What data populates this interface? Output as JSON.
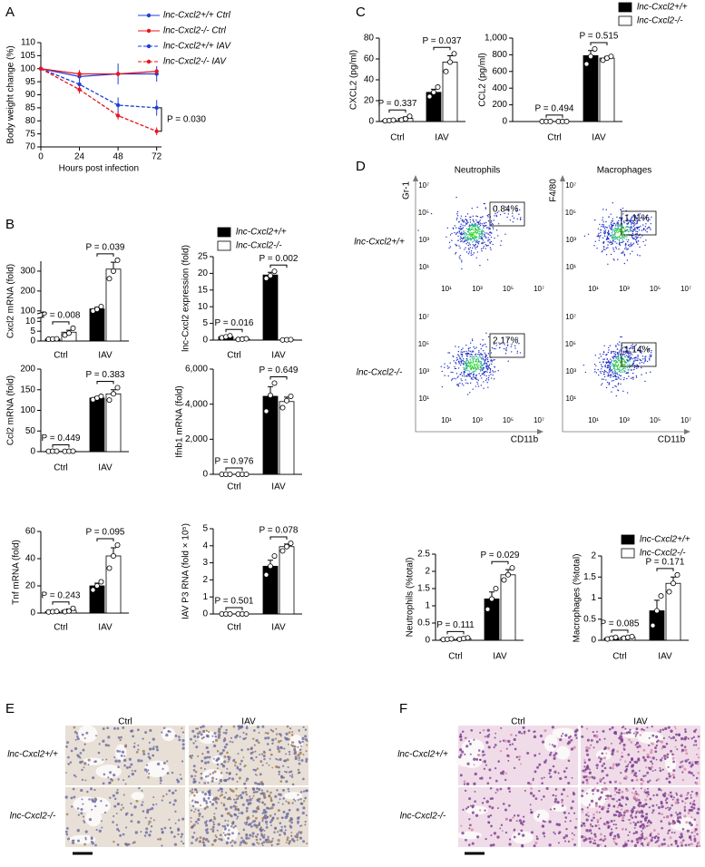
{
  "chart_data": [
    {
      "type": "line",
      "panel": "A",
      "ylabel": "Body weight change (%)",
      "xlabel": "Hours post infection",
      "x": [
        0,
        24,
        48,
        72
      ],
      "xlim": [
        0,
        75
      ],
      "xticks": [
        0,
        24,
        48,
        72
      ],
      "ylim": [
        70,
        110
      ],
      "yticks": [
        70,
        75,
        80,
        85,
        90,
        95,
        100,
        105,
        110
      ],
      "series": [
        {
          "name": "lnc-Cxcl2+/+ Ctrl",
          "color": "#1f3fd8",
          "dash": false,
          "values": [
            100,
            97,
            98,
            98
          ],
          "errors": [
            0,
            2,
            4,
            3
          ]
        },
        {
          "name": "lnc-Cxcl2-/- Ctrl",
          "color": "#e8141c",
          "dash": false,
          "values": [
            100,
            98,
            98,
            99
          ],
          "errors": [
            0,
            1.5,
            1,
            1
          ]
        },
        {
          "name": "lnc-Cxcl2+/+ IAV",
          "color": "#1f3fd8",
          "dash": true,
          "values": [
            100,
            94,
            86,
            85
          ],
          "errors": [
            0,
            2,
            3,
            3
          ]
        },
        {
          "name": "lnc-Cxcl2-/- IAV",
          "color": "#e8141c",
          "dash": true,
          "values": [
            100,
            92,
            82,
            76
          ],
          "errors": [
            0,
            1.5,
            1.5,
            1.5
          ]
        }
      ],
      "annotations": [
        "P = 0.030"
      ]
    },
    {
      "type": "bar",
      "panel": "B",
      "ylabel": "Cxcl2 mRNA (fold)",
      "categories": [
        "Ctrl",
        "IAV"
      ],
      "ylim": [
        0,
        350
      ],
      "ybreak": [
        12,
        90
      ],
      "yticks": [
        0,
        5,
        10,
        100,
        200,
        300
      ],
      "series": [
        {
          "color": "#000000",
          "values": [
            1,
            110
          ],
          "errors": [
            0.1,
            8
          ],
          "points": [
            [
              0.9,
              1,
              1.1
            ],
            [
              100,
              108,
              122
            ]
          ]
        },
        {
          "color": "#ffffff",
          "values": [
            4.5,
            310
          ],
          "errors": [
            1,
            35
          ],
          "points": [
            [
              3,
              4,
              6.5
            ],
            [
              262,
              300,
              355
            ]
          ]
        }
      ],
      "annotations": [
        "P = 0.008",
        "P = 0.039"
      ]
    },
    {
      "type": "bar",
      "ylabel": "lnc-Cxcl2 expression (fold)",
      "categories": [
        "Ctrl",
        "IAV"
      ],
      "ylim": [
        0,
        25
      ],
      "yticks": [
        0,
        5,
        10,
        15,
        20,
        25
      ],
      "legend": true,
      "series": [
        {
          "name": "lnc-Cxcl2+/+",
          "color": "#000000",
          "values": [
            1,
            19.5
          ],
          "errors": [
            0.2,
            0.8
          ],
          "points": [
            [
              0.7,
              1,
              1.3
            ],
            [
              18.5,
              19.3,
              20.6
            ]
          ]
        },
        {
          "name": "lnc-Cxcl2-/-",
          "color": "#ffffff",
          "values": [
            0.3,
            0.1
          ],
          "errors": [
            0.1,
            0.05
          ],
          "points": [
            [
              0.2,
              0.3,
              0.4
            ],
            [
              0.05,
              0.1,
              0.15
            ]
          ]
        }
      ],
      "annotations": [
        "P = 0.016",
        "P = 0.002"
      ]
    },
    {
      "type": "bar",
      "ylabel": "Ccl2 mRNA (fold)",
      "categories": [
        "Ctrl",
        "IAV"
      ],
      "ylim": [
        0,
        200
      ],
      "yticks": [
        0,
        50,
        100,
        150,
        200
      ],
      "series": [
        {
          "color": "#000000",
          "values": [
            1,
            130
          ],
          "errors": [
            0.2,
            3
          ],
          "points": [
            [
              0.8,
              1,
              1.2
            ],
            [
              126,
              130,
              134
            ]
          ]
        },
        {
          "color": "#ffffff",
          "values": [
            1,
            140
          ],
          "errors": [
            0.2,
            10
          ],
          "points": [
            [
              0.8,
              1,
              1.2
            ],
            [
              125,
              140,
              155
            ]
          ]
        }
      ],
      "annotations": [
        "P = 0.449",
        "P = 0.383"
      ]
    },
    {
      "type": "bar",
      "ylabel": "Ifnb1 mRNA (fold)",
      "categories": [
        "Ctrl",
        "IAV"
      ],
      "ylim": [
        0,
        6000
      ],
      "yticks": [
        0,
        {
          "value": 2000,
          "label": "2,000"
        },
        {
          "value": 4000,
          "label": "4,000"
        },
        {
          "value": 6000,
          "label": "6,000"
        }
      ],
      "series": [
        {
          "color": "#000000",
          "values": [
            1,
            4450
          ],
          "errors": [
            0.2,
            550
          ],
          "points": [
            [
              1,
              1,
              1
            ],
            [
              3600,
              4500,
              5200
            ]
          ]
        },
        {
          "color": "#ffffff",
          "values": [
            1,
            4150
          ],
          "errors": [
            0.2,
            250
          ],
          "points": [
            [
              1,
              1,
              1
            ],
            [
              3800,
              4200,
              4450
            ]
          ]
        }
      ],
      "annotations": [
        "P = 0.976",
        "P = 0.649"
      ]
    },
    {
      "type": "bar",
      "ylabel": "Tnf mRNA (fold)",
      "categories": [
        "Ctrl",
        "IAV"
      ],
      "ylim": [
        0,
        60
      ],
      "yticks": [
        0,
        20,
        40,
        60
      ],
      "series": [
        {
          "color": "#000000",
          "values": [
            1,
            20
          ],
          "errors": [
            0.2,
            2
          ],
          "points": [
            [
              0.8,
              1,
              1.2
            ],
            [
              17,
              20,
              23
            ]
          ]
        },
        {
          "color": "#ffffff",
          "values": [
            2,
            42
          ],
          "errors": [
            1,
            6
          ],
          "points": [
            [
              1,
              1.5,
              3.5
            ],
            [
              33,
              42,
              50
            ]
          ]
        }
      ],
      "annotations": [
        "P = 0.243",
        "P = 0.095"
      ]
    },
    {
      "type": "bar",
      "ylabel": "IAV P3 RNA (fold × 10⁵)",
      "categories": [
        "Ctrl",
        "IAV"
      ],
      "ylim": [
        0,
        5
      ],
      "yticks": [
        0,
        1,
        2,
        3,
        4,
        5
      ],
      "series": [
        {
          "color": "#000000",
          "values": [
            0,
            2.8
          ],
          "errors": [
            0,
            0.35
          ],
          "points": [
            [
              0,
              0,
              0
            ],
            [
              2.3,
              2.8,
              3.4
            ]
          ]
        },
        {
          "color": "#ffffff",
          "values": [
            0,
            3.95
          ],
          "errors": [
            0,
            0.15
          ],
          "points": [
            [
              0,
              0,
              0
            ],
            [
              3.7,
              3.95,
              4.15
            ]
          ]
        }
      ],
      "annotations": [
        "P = 0.501",
        "P = 0.078"
      ]
    },
    {
      "type": "bar",
      "panel": "C",
      "ylabel": "CXCL2 (pg/ml)",
      "categories": [
        "Ctrl",
        "IAV"
      ],
      "ylim": [
        0,
        80
      ],
      "yticks": [
        0,
        20,
        40,
        60,
        80
      ],
      "series": [
        {
          "color": "#000000",
          "values": [
            1,
            28
          ],
          "errors": [
            0.3,
            3
          ],
          "points": [
            [
              0.7,
              1,
              1.3
            ],
            [
              24,
              28,
              33
            ]
          ]
        },
        {
          "color": "#ffffff",
          "values": [
            3,
            57
          ],
          "errors": [
            1.5,
            6
          ],
          "points": [
            [
              1.5,
              2.5,
              5
            ],
            [
              48,
              57,
              65
            ]
          ]
        }
      ],
      "annotations": [
        "P = 0.337",
        "P = 0.037"
      ]
    },
    {
      "type": "bar",
      "ylabel": "CCL2 (pg/ml)",
      "categories": [
        "Ctrl",
        "IAV"
      ],
      "ylim": [
        0,
        1000
      ],
      "yticks": [
        0,
        200,
        400,
        600,
        800,
        {
          "value": 1000,
          "label": "1,000"
        }
      ],
      "legend": true,
      "series": [
        {
          "name": "lnc-Cxcl2+/+",
          "color": "#000000",
          "values": [
            1,
            790
          ],
          "errors": [
            0.3,
            60
          ],
          "points": [
            [
              1,
              1,
              1
            ],
            [
              690,
              780,
              870
            ]
          ]
        },
        {
          "name": "lnc-Cxcl2-/-",
          "color": "#ffffff",
          "values": [
            1,
            760
          ],
          "errors": [
            0.3,
            20
          ],
          "points": [
            [
              1,
              1,
              1
            ],
            [
              735,
              760,
              780
            ]
          ]
        }
      ],
      "annotations": [
        "P = 0.494",
        "P = 0.515"
      ]
    },
    {
      "type": "bar",
      "ylabel": "Neutrophils (%total)",
      "categories": [
        "Ctrl",
        "IAV"
      ],
      "ylim": [
        0,
        2.5
      ],
      "yticks": [
        0,
        0.5,
        1,
        1.5,
        2,
        2.5
      ],
      "series": [
        {
          "color": "#000000",
          "values": [
            0.03,
            1.2
          ],
          "errors": [
            0.01,
            0.2
          ],
          "points": [
            [
              0.02,
              0.03,
              0.04
            ],
            [
              0.9,
              1.2,
              1.5
            ]
          ]
        },
        {
          "color": "#ffffff",
          "values": [
            0.05,
            1.9
          ],
          "errors": [
            0.02,
            0.15
          ],
          "points": [
            [
              0.03,
              0.05,
              0.07
            ],
            [
              1.75,
              1.9,
              2.1
            ]
          ]
        }
      ],
      "annotations": [
        "P = 0.111",
        "P = 0.029"
      ]
    },
    {
      "type": "bar",
      "ylabel": "Macrophages (%total)",
      "categories": [
        "Ctrl",
        "IAV"
      ],
      "ylim": [
        0,
        2
      ],
      "yticks": [
        0,
        0.5,
        1,
        1.5,
        2
      ],
      "legend": true,
      "series": [
        {
          "name": "lnc-Cxcl2+/+",
          "color": "#000000",
          "values": [
            0.05,
            0.7
          ],
          "errors": [
            0.02,
            0.25
          ],
          "points": [
            [
              0.03,
              0.05,
              0.07
            ],
            [
              0.35,
              0.7,
              1.05
            ]
          ]
        },
        {
          "name": "lnc-Cxcl2-/-",
          "color": "#ffffff",
          "values": [
            0.07,
            1.35
          ],
          "errors": [
            0.02,
            0.15
          ],
          "points": [
            [
              0.05,
              0.07,
              0.09
            ],
            [
              1.15,
              1.35,
              1.55
            ]
          ]
        }
      ],
      "annotations": [
        "P = 0.085",
        "P = 0.171"
      ]
    }
  ],
  "flow": {
    "panel": "D",
    "plots": [
      {
        "title": "Neutrophils",
        "ylabel": "Gr-1",
        "xlabel": "CD11b"
      },
      {
        "title": "Macrophages",
        "ylabel": "F4/80",
        "xlabel": "CD11b"
      }
    ],
    "rows": [
      "lnc-Cxcl2+/+",
      "lnc-Cxcl2-/-"
    ],
    "ticks": [
      "10¹",
      "10³",
      "10⁵",
      "10⁷"
    ],
    "gates": [
      [
        "0.84%",
        "1.11%"
      ],
      [
        "2.17%",
        "1.14%"
      ]
    ]
  },
  "histology": [
    {
      "panel": "E",
      "columns": [
        "Ctrl",
        "IAV"
      ],
      "rows": [
        "lnc-Cxcl2+/+",
        "lnc-Cxcl2-/-"
      ]
    },
    {
      "panel": "F",
      "columns": [
        "Ctrl",
        "IAV"
      ],
      "rows": [
        "lnc-Cxcl2+/+",
        "lnc-Cxcl2-/-"
      ]
    }
  ]
}
